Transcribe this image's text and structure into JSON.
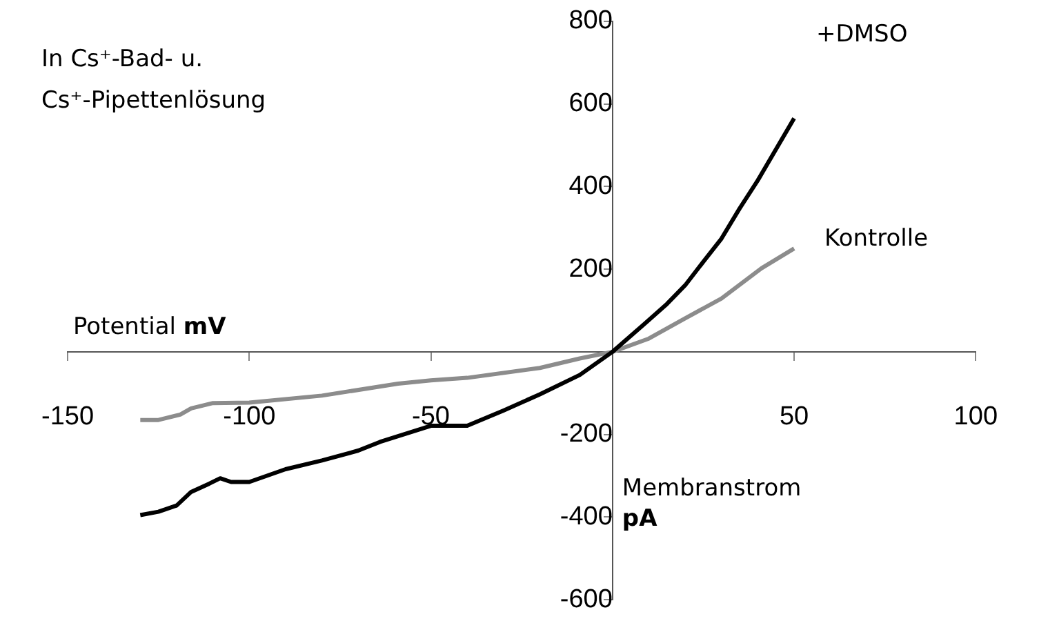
{
  "chart_data": {
    "type": "line",
    "title": "In Cs⁺-Bad- u. Cs⁺-Pipettenlösung",
    "xlabel": "Potential mV",
    "ylabel": "Membranstrom pA",
    "xlim": [
      -150,
      100
    ],
    "xticks": [
      -150,
      -100,
      -50,
      50,
      100
    ],
    "ylim": [
      -600,
      800
    ],
    "yticks": [
      -600,
      -400,
      -200,
      200,
      400,
      600,
      800
    ],
    "grid": false,
    "legend": false,
    "marker": "none",
    "line_style": "solid",
    "series": [
      {
        "name": "+DMSO",
        "color": "#000000",
        "x": [
          -130,
          -125,
          -120,
          -116,
          -111,
          -108,
          -105,
          -100,
          -90,
          -80,
          -70,
          -64,
          -50,
          -40,
          -30,
          -20,
          -9,
          0,
          9,
          15,
          20,
          25,
          30,
          35,
          40,
          50
        ],
        "values": [
          -395,
          -387,
          -372,
          -339,
          -319,
          -306,
          -315,
          -315,
          -284,
          -263,
          -239,
          -218,
          -179,
          -179,
          -142,
          -103,
          -56,
          0,
          69,
          116,
          161,
          218,
          274,
          347,
          415,
          565
        ]
      },
      {
        "name": "Kontrolle",
        "color": "#8c8c8c",
        "x": [
          -130,
          -125,
          -119,
          -116,
          -110,
          -100,
          -80,
          -59,
          -50,
          -40,
          -20,
          -9,
          0,
          10,
          20,
          30,
          41,
          50
        ],
        "values": [
          -165,
          -165,
          -152,
          -137,
          -124,
          -123,
          -106,
          -77,
          -69,
          -63,
          -39,
          -16,
          0,
          32,
          81,
          129,
          202,
          250
        ]
      }
    ]
  }
}
